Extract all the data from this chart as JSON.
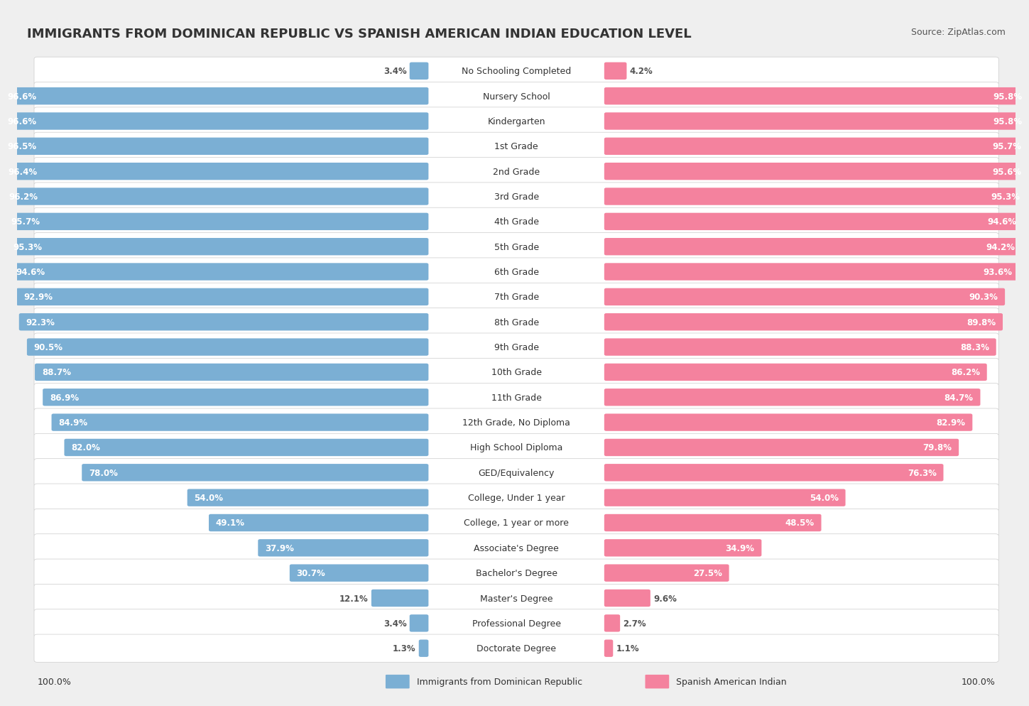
{
  "title": "IMMIGRANTS FROM DOMINICAN REPUBLIC VS SPANISH AMERICAN INDIAN EDUCATION LEVEL",
  "source": "Source: ZipAtlas.com",
  "categories": [
    "No Schooling Completed",
    "Nursery School",
    "Kindergarten",
    "1st Grade",
    "2nd Grade",
    "3rd Grade",
    "4th Grade",
    "5th Grade",
    "6th Grade",
    "7th Grade",
    "8th Grade",
    "9th Grade",
    "10th Grade",
    "11th Grade",
    "12th Grade, No Diploma",
    "High School Diploma",
    "GED/Equivalency",
    "College, Under 1 year",
    "College, 1 year or more",
    "Associate's Degree",
    "Bachelor's Degree",
    "Master's Degree",
    "Professional Degree",
    "Doctorate Degree"
  ],
  "left_values": [
    3.4,
    96.6,
    96.6,
    96.5,
    96.4,
    96.2,
    95.7,
    95.3,
    94.6,
    92.9,
    92.3,
    90.5,
    88.7,
    86.9,
    84.9,
    82.0,
    78.0,
    54.0,
    49.1,
    37.9,
    30.7,
    12.1,
    3.4,
    1.3
  ],
  "right_values": [
    4.2,
    95.8,
    95.8,
    95.7,
    95.6,
    95.3,
    94.6,
    94.2,
    93.6,
    90.3,
    89.8,
    88.3,
    86.2,
    84.7,
    82.9,
    79.8,
    76.3,
    54.0,
    48.5,
    34.9,
    27.5,
    9.6,
    2.7,
    1.1
  ],
  "left_color": "#7bafd4",
  "right_color": "#f4829e",
  "background_color": "#efefef",
  "left_label": "Immigrants from Dominican Republic",
  "right_label": "Spanish American Indian",
  "max_value": 100.0,
  "title_fontsize": 13,
  "label_fontsize": 9,
  "value_fontsize": 8.5
}
